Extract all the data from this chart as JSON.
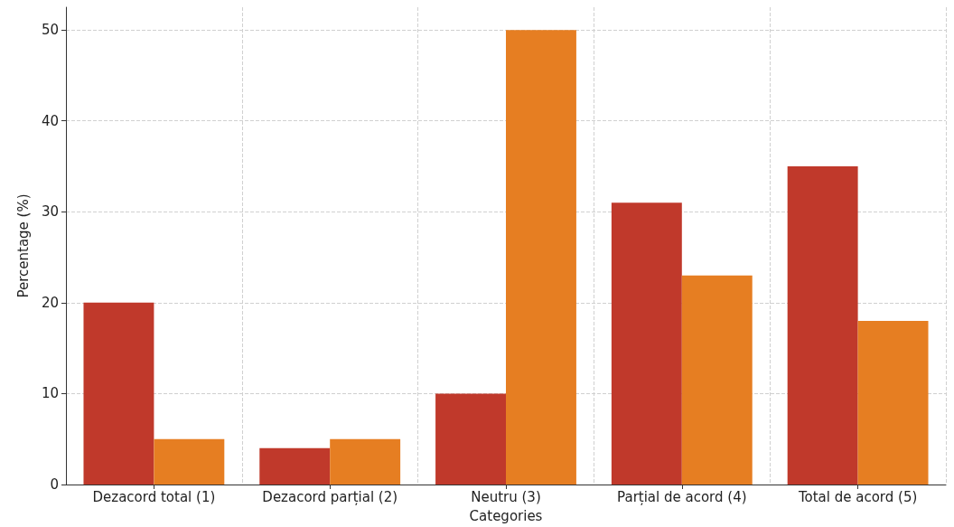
{
  "chart_data": {
    "type": "bar",
    "xlabel": "Categories",
    "ylabel": "Percentage (%)",
    "categories": [
      "Dezacord total (1)",
      "Dezacord parțial (2)",
      "Neutru (3)",
      "Parțial de acord (4)",
      "Total de acord (5)"
    ],
    "series": [
      {
        "color": "#c0392b",
        "values": [
          20,
          4,
          10,
          31,
          35
        ]
      },
      {
        "color": "#e67e22",
        "values": [
          5,
          5,
          50,
          23,
          18
        ]
      }
    ],
    "ylim": [
      0,
      52.5
    ],
    "yticks": [
      0,
      10,
      20,
      30,
      40,
      50
    ],
    "grid": true
  }
}
